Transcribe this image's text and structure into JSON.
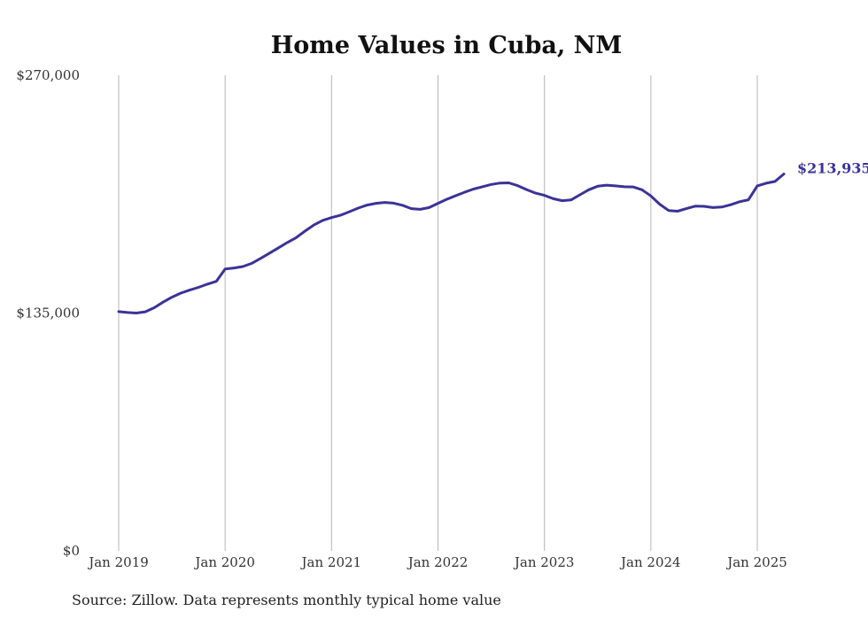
{
  "chart_data": {
    "type": "line",
    "title": "Home Values in Cuba, NM",
    "xlabel": "",
    "ylabel": "",
    "ylim": [
      0,
      270000
    ],
    "y_ticks": [
      {
        "value": 0,
        "label": "$0"
      },
      {
        "value": 135000,
        "label": "$135,000"
      },
      {
        "value": 270000,
        "label": "$270,000"
      }
    ],
    "x_ticks": [
      {
        "date": "2019-01",
        "label": "Jan 2019"
      },
      {
        "date": "2020-01",
        "label": "Jan 2020"
      },
      {
        "date": "2021-01",
        "label": "Jan 2021"
      },
      {
        "date": "2022-01",
        "label": "Jan 2022"
      },
      {
        "date": "2023-01",
        "label": "Jan 2023"
      },
      {
        "date": "2024-01",
        "label": "Jan 2024"
      },
      {
        "date": "2025-01",
        "label": "Jan 2025"
      }
    ],
    "grid": "vertical",
    "series": [
      {
        "color": "#3b3397",
        "end_label": "$213,935",
        "points": [
          [
            "2019-01",
            135800
          ],
          [
            "2019-02",
            135300
          ],
          [
            "2019-03",
            135000
          ],
          [
            "2019-04",
            135700
          ],
          [
            "2019-05",
            138000
          ],
          [
            "2019-06",
            141200
          ],
          [
            "2019-07",
            144000
          ],
          [
            "2019-08",
            146300
          ],
          [
            "2019-09",
            148000
          ],
          [
            "2019-10",
            149600
          ],
          [
            "2019-11",
            151400
          ],
          [
            "2019-12",
            153000
          ],
          [
            "2020-01",
            160000
          ],
          [
            "2020-02",
            160600
          ],
          [
            "2020-03",
            161400
          ],
          [
            "2020-04",
            163200
          ],
          [
            "2020-05",
            166000
          ],
          [
            "2020-06",
            169000
          ],
          [
            "2020-07",
            172000
          ],
          [
            "2020-08",
            175000
          ],
          [
            "2020-09",
            177800
          ],
          [
            "2020-10",
            181500
          ],
          [
            "2020-11",
            185000
          ],
          [
            "2020-12",
            187600
          ],
          [
            "2021-01",
            189200
          ],
          [
            "2021-02",
            190500
          ],
          [
            "2021-03",
            192500
          ],
          [
            "2021-04",
            194600
          ],
          [
            "2021-05",
            196300
          ],
          [
            "2021-06",
            197300
          ],
          [
            "2021-07",
            197800
          ],
          [
            "2021-08",
            197400
          ],
          [
            "2021-09",
            196200
          ],
          [
            "2021-10",
            194300
          ],
          [
            "2021-11",
            193900
          ],
          [
            "2021-12",
            194900
          ],
          [
            "2022-01",
            197300
          ],
          [
            "2022-02",
            199600
          ],
          [
            "2022-03",
            201600
          ],
          [
            "2022-04",
            203600
          ],
          [
            "2022-05",
            205400
          ],
          [
            "2022-06",
            206700
          ],
          [
            "2022-07",
            208000
          ],
          [
            "2022-08",
            208800
          ],
          [
            "2022-09",
            208900
          ],
          [
            "2022-10",
            207300
          ],
          [
            "2022-11",
            205100
          ],
          [
            "2022-12",
            203100
          ],
          [
            "2023-01",
            201800
          ],
          [
            "2023-02",
            199900
          ],
          [
            "2023-03",
            198800
          ],
          [
            "2023-04",
            199200
          ],
          [
            "2023-05",
            202100
          ],
          [
            "2023-06",
            205000
          ],
          [
            "2023-07",
            207000
          ],
          [
            "2023-08",
            207600
          ],
          [
            "2023-09",
            207200
          ],
          [
            "2023-10",
            206700
          ],
          [
            "2023-11",
            206600
          ],
          [
            "2023-12",
            205000
          ],
          [
            "2024-01",
            201500
          ],
          [
            "2024-02",
            196800
          ],
          [
            "2024-03",
            193200
          ],
          [
            "2024-04",
            192800
          ],
          [
            "2024-05",
            194300
          ],
          [
            "2024-06",
            195700
          ],
          [
            "2024-07",
            195600
          ],
          [
            "2024-08",
            194900
          ],
          [
            "2024-09",
            195200
          ],
          [
            "2024-10",
            196500
          ],
          [
            "2024-11",
            198200
          ],
          [
            "2024-12",
            199300
          ],
          [
            "2025-01",
            207200
          ],
          [
            "2025-02",
            208700
          ],
          [
            "2025-03",
            209700
          ],
          [
            "2025-04",
            213935
          ]
        ]
      }
    ]
  },
  "source_note": "Source: Zillow. Data represents monthly typical home value"
}
